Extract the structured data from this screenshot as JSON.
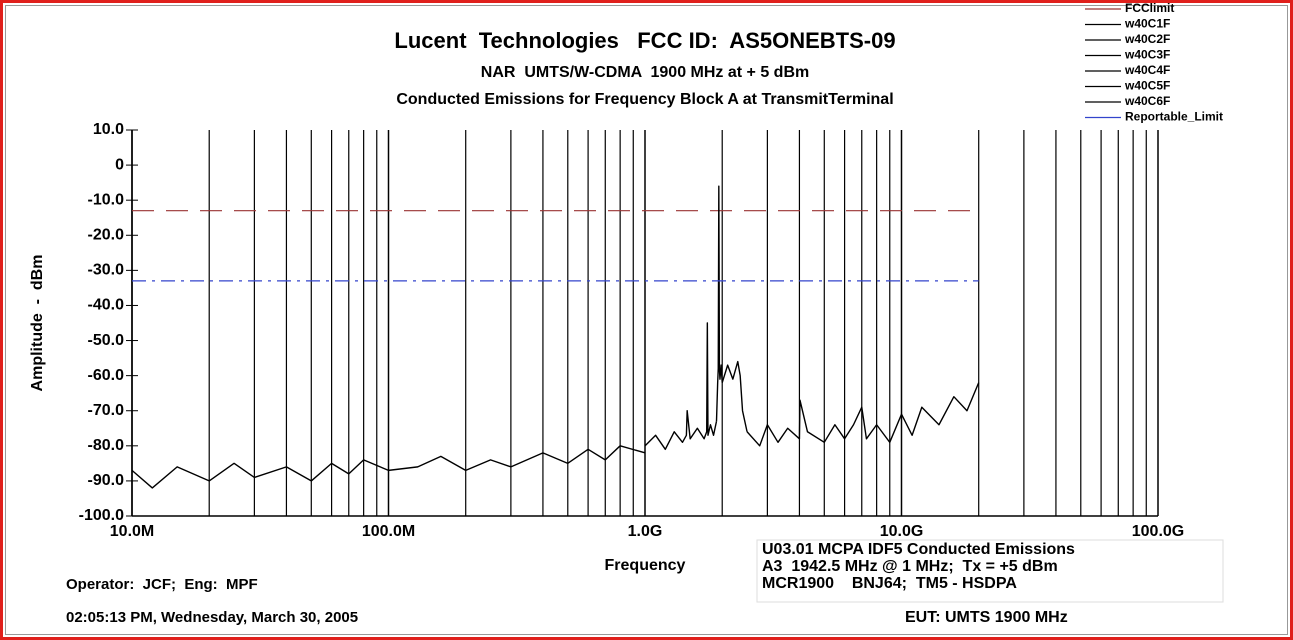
{
  "chart_data": {
    "type": "line",
    "title": "Lucent  Technologies   FCC ID:  AS5ONEBTS-09",
    "subtitle": "NAR  UMTS/W-CDMA  1900 MHz at + 5 dBm",
    "subtitle2": "Conducted Emissions for Frequency Block A at TransmitTerminal",
    "y_label": "Amplitude  -  dBm",
    "x_label": "Frequency",
    "x_log": true,
    "xlim": [
      10000000,
      100000000000
    ],
    "xticks": [
      {
        "value": 10000000,
        "label": "10.0M"
      },
      {
        "value": 100000000,
        "label": "100.0M"
      },
      {
        "value": 1000000000,
        "label": "1.0G"
      },
      {
        "value": 10000000000,
        "label": "10.0G"
      },
      {
        "value": 100000000000,
        "label": "100.0G"
      }
    ],
    "x_minor_gridlines": [
      20000000,
      30000000,
      40000000,
      50000000,
      60000000,
      70000000,
      80000000,
      90000000,
      200000000,
      300000000,
      400000000,
      500000000,
      600000000,
      700000000,
      800000000,
      900000000,
      2000000000,
      3000000000,
      4000000000,
      5000000000,
      6000000000,
      7000000000,
      8000000000,
      9000000000,
      20000000000,
      30000000000,
      40000000000,
      50000000000,
      60000000000,
      70000000000,
      80000000000,
      90000000000
    ],
    "ylim": [
      -100,
      10
    ],
    "yticks": [
      {
        "value": 10,
        "label": "10.0"
      },
      0,
      {
        "value": -10,
        "label": "-10.0"
      },
      {
        "value": -20,
        "label": "-20.0"
      },
      {
        "value": -30,
        "label": "-30.0"
      },
      {
        "value": -40,
        "label": "-40.0"
      },
      {
        "value": -50,
        "label": "-50.0"
      },
      {
        "value": -60,
        "label": "-60.0"
      },
      {
        "value": -70,
        "label": "-70.0"
      },
      {
        "value": -80,
        "label": "-80.0"
      },
      {
        "value": -90,
        "label": "-90.0"
      },
      {
        "value": -100,
        "label": "-100.0"
      }
    ],
    "series": [
      {
        "name": "FCClimit",
        "color": "#993333",
        "dash": "dashed",
        "x": [
          10000000,
          20000000000
        ],
        "values": [
          -13,
          -13
        ]
      },
      {
        "name": "w40C1F",
        "color": "#000000",
        "x": [
          10000000,
          12000000,
          15000000,
          20000000,
          25000000,
          30000000,
          40000000,
          50000000,
          60000000,
          70000000,
          80000000,
          100000000,
          130000000,
          160000000,
          200000000,
          250000000,
          300000000,
          400000000,
          500000000,
          600000000,
          700000000,
          800000000,
          1000000000
        ],
        "values": [
          -87,
          -92,
          -86,
          -90,
          -85,
          -89,
          -86,
          -90,
          -85,
          -88,
          -84,
          -87,
          -86,
          -83,
          -87,
          -84,
          -86,
          -82,
          -85,
          -81,
          -84,
          -80,
          -82
        ]
      },
      {
        "name": "w40C2F",
        "color": "#000000",
        "x": [
          1000000000,
          1100000000,
          1200000000,
          1300000000,
          1400000000,
          1450000000,
          1460000000,
          1500000000,
          1600000000,
          1700000000,
          1740000000,
          1750000000,
          1760000000,
          1800000000,
          1850000000,
          1900000000
        ],
        "values": [
          -80,
          -77,
          -81,
          -76,
          -79,
          -77,
          -70,
          -78,
          -75,
          -78,
          -76,
          -45,
          -77,
          -74,
          -77,
          -73
        ]
      },
      {
        "name": "w40C3F",
        "color": "#000000",
        "x": [
          1900000000,
          1920000000,
          1930000000,
          1940000000,
          1945000000,
          1950000000,
          1960000000,
          1980000000,
          2000000000
        ],
        "values": [
          -73,
          -62,
          -58,
          -6,
          -30,
          -58,
          -61,
          -57,
          -62
        ]
      },
      {
        "name": "w40C4F",
        "color": "#000000",
        "x": [
          2000000000,
          2100000000,
          2200000000,
          2300000000,
          2350000000,
          2400000000,
          2500000000
        ],
        "values": [
          -62,
          -57,
          -61,
          -56,
          -60,
          -70,
          -76
        ]
      },
      {
        "name": "w40C5F",
        "color": "#000000",
        "x": [
          2500000000,
          2800000000,
          3000000000,
          3300000000,
          3600000000,
          4000000000,
          4020000000,
          4300000000,
          5000000000,
          5500000000,
          6000000000,
          6500000000,
          7000000000,
          7300000000,
          8000000000
        ],
        "values": [
          -76,
          -80,
          -74,
          -79,
          -75,
          -78,
          -67,
          -76,
          -79,
          -74,
          -78,
          -74,
          -69,
          -78,
          -74
        ]
      },
      {
        "name": "w40C6F",
        "color": "#000000",
        "x": [
          8000000000,
          9000000000,
          10000000000,
          11000000000,
          12000000000,
          14000000000,
          16000000000,
          18000000000,
          20000000000
        ],
        "values": [
          -74,
          -79,
          -71,
          -77,
          -69,
          -74,
          -66,
          -70,
          -62
        ]
      },
      {
        "name": "Reportable_Limit",
        "color": "#3344cc",
        "dash": "dashdot",
        "x": [
          10000000,
          20000000000
        ],
        "values": [
          -33,
          -33
        ]
      }
    ],
    "legend": "top-right",
    "annotations": {
      "operator": "Operator:  JCF;  Eng:  MPF",
      "timestamp": "02:05:13 PM, Wednesday, March 30, 2005",
      "test_lines": [
        "U03.01 MCPA IDF5 Conducted Emissions",
        "A3  1942.5 MHz @ 1 MHz;  Tx = +5 dBm",
        "MCR1900    BNJ64;  TM5 - HSDPA"
      ],
      "eut": "EUT: UMTS 1900 MHz"
    }
  }
}
